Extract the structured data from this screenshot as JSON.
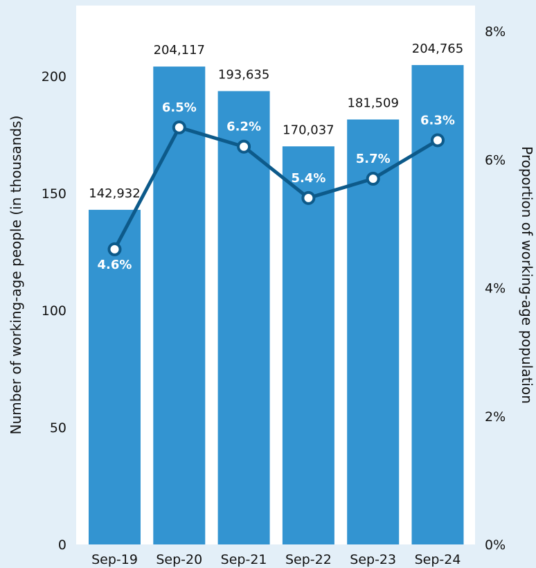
{
  "chart_data": {
    "type": "bar",
    "categories": [
      "Sep-19",
      "Sep-20",
      "Sep-21",
      "Sep-22",
      "Sep-23",
      "Sep-24"
    ],
    "series": [
      {
        "values": [
          142932,
          204117,
          193635,
          170037,
          181509,
          204765
        ],
        "labels": [
          "142,932",
          "204,117",
          "193,635",
          "170,037",
          "181,509",
          "204,765"
        ],
        "axis": "left",
        "kind": "bar",
        "color": "#3394d1"
      },
      {
        "values": [
          4.6,
          6.5,
          6.2,
          5.4,
          5.7,
          6.3
        ],
        "labels": [
          "4.6%",
          "6.5%",
          "6.2%",
          "5.4%",
          "5.7%",
          "6.3%"
        ],
        "axis": "right",
        "kind": "line",
        "color": "#0d5a8a"
      }
    ],
    "ylabel": "Number of working-age people (in thousands)",
    "y2label": "Proportion of working-age population",
    "ylim": [
      0,
      230
    ],
    "y2lim": [
      0,
      8.2
    ],
    "yticks": [
      "0",
      "50",
      "100",
      "150",
      "200"
    ],
    "yticks_values": [
      0,
      50,
      100,
      150,
      200
    ],
    "y2ticks": [
      "0%",
      "2%",
      "4%",
      "6%",
      "8%"
    ],
    "y2ticks_values": [
      0,
      2,
      4,
      6,
      8
    ],
    "grid": false,
    "colors": {
      "background": "#e3eff8",
      "plot_background": "#ffffff"
    }
  }
}
